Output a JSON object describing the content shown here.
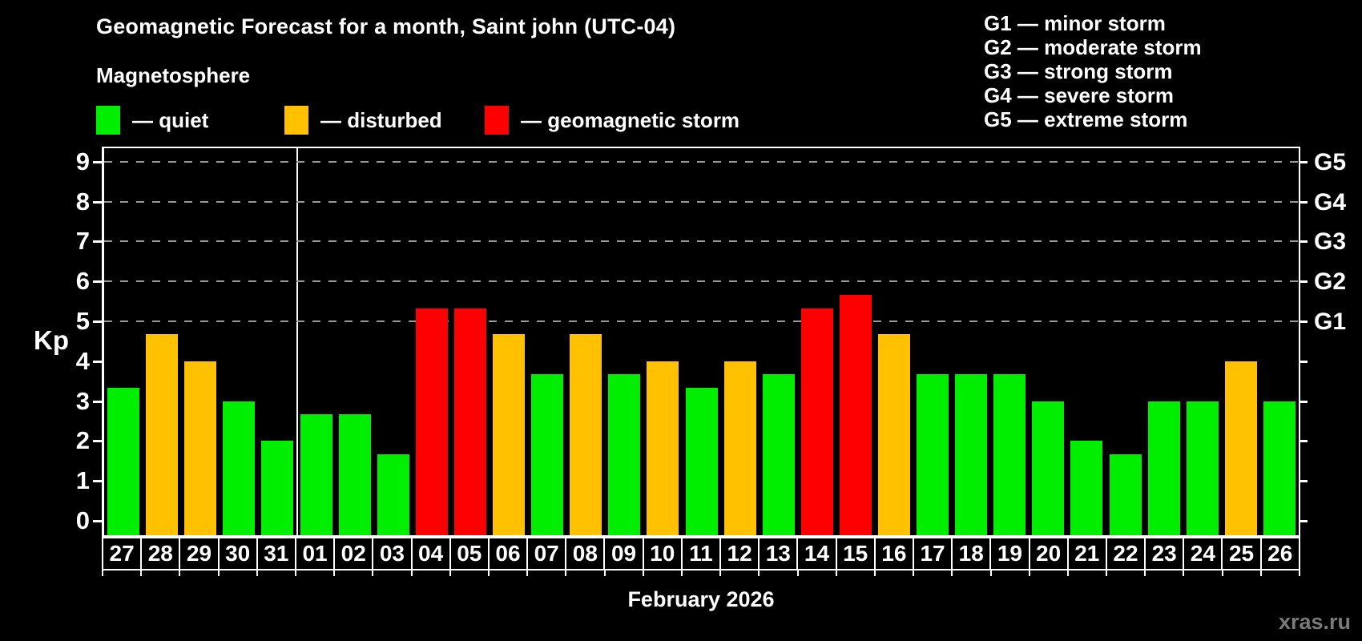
{
  "header": {
    "title": "Geomagnetic Forecast for a month, Saint john (UTC-04)",
    "subtitle": "Magnetosphere"
  },
  "legend": {
    "quiet_label": "— quiet",
    "disturbed_label": "— disturbed",
    "storm_label": "— geomagnetic storm"
  },
  "storm_scale_legend": {
    "g1": "G1 — minor storm",
    "g2": "G2 — moderate storm",
    "g3": "G3 — strong storm",
    "g4": "G4 — severe storm",
    "g5": "G5 — extreme storm"
  },
  "colors": {
    "quiet": "#00EE00",
    "disturbed": "#FFC100",
    "storm": "#FF0000",
    "gridline": "#9a9a9a",
    "watermark_gray": "#7a7a7a"
  },
  "axes": {
    "y_label": "Kp",
    "y_ticks": [
      0,
      1,
      2,
      3,
      4,
      5,
      6,
      7,
      8,
      9
    ],
    "right_g_labels": [
      {
        "kp": 5,
        "label": "G1"
      },
      {
        "kp": 6,
        "label": "G2"
      },
      {
        "kp": 7,
        "label": "G3"
      },
      {
        "kp": 8,
        "label": "G4"
      },
      {
        "kp": 9,
        "label": "G5"
      }
    ],
    "x_label": "February 2026"
  },
  "watermark": "xras.ru",
  "chart_data": {
    "type": "bar",
    "title": "Geomagnetic Forecast for a month, Saint john (UTC-04)",
    "xlabel": "February 2026",
    "ylabel": "Kp",
    "ylim": [
      0,
      9
    ],
    "gridlines_at": [
      5,
      6,
      7,
      8,
      9
    ],
    "legend_position": "top",
    "month_separator_after_index": 4,
    "categories": [
      "27",
      "28",
      "29",
      "30",
      "31",
      "01",
      "02",
      "03",
      "04",
      "05",
      "06",
      "07",
      "08",
      "09",
      "10",
      "11",
      "12",
      "13",
      "14",
      "15",
      "16",
      "17",
      "18",
      "19",
      "20",
      "21",
      "22",
      "23",
      "24",
      "25",
      "26"
    ],
    "values": [
      3.33,
      4.67,
      4.0,
      3.0,
      2.0,
      2.67,
      2.67,
      1.67,
      5.33,
      5.33,
      4.67,
      3.67,
      4.67,
      3.67,
      4.0,
      3.33,
      4.0,
      3.67,
      5.33,
      5.67,
      4.67,
      3.67,
      3.67,
      3.67,
      3.0,
      2.0,
      1.67,
      3.0,
      3.0,
      4.0,
      3.0
    ],
    "statuses": [
      "quiet",
      "disturbed",
      "disturbed",
      "quiet",
      "quiet",
      "quiet",
      "quiet",
      "quiet",
      "storm",
      "storm",
      "disturbed",
      "quiet",
      "disturbed",
      "quiet",
      "disturbed",
      "quiet",
      "disturbed",
      "quiet",
      "storm",
      "storm",
      "disturbed",
      "quiet",
      "quiet",
      "quiet",
      "quiet",
      "quiet",
      "quiet",
      "quiet",
      "quiet",
      "disturbed",
      "quiet"
    ]
  }
}
